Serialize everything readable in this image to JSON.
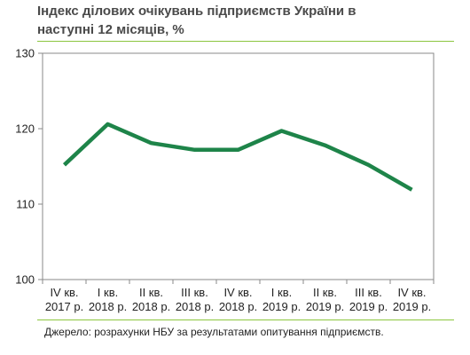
{
  "colors": {
    "line": "#1e8449",
    "axis": "#888888",
    "accent_rule": "#8cc63f",
    "text": "#222222",
    "title": "#4a4a4a"
  },
  "chart_data": {
    "type": "line",
    "title": "Індекс ділових очікувань підприємств України в\nнаступні 12 місяців, %",
    "xlabel": "",
    "ylabel": "",
    "ylim": [
      100,
      130
    ],
    "yticks": [
      "100",
      "110",
      "120",
      "130"
    ],
    "categories": [
      [
        "IV кв.",
        "2017 р."
      ],
      [
        "I кв.",
        "2018 р."
      ],
      [
        "II кв.",
        "2018 р."
      ],
      [
        "III кв.",
        "2018 р."
      ],
      [
        "IV кв.",
        "2018 р."
      ],
      [
        "I кв.",
        "2019 р."
      ],
      [
        "II кв.",
        "2019 р."
      ],
      [
        "III кв.",
        "2019 р."
      ],
      [
        "IV кв.",
        "2019 р."
      ]
    ],
    "series": [
      {
        "values": [
          115.2,
          120.6,
          118.1,
          117.2,
          117.2,
          119.7,
          117.8,
          115.2,
          111.9
        ]
      }
    ],
    "grid": false,
    "legend": "none"
  },
  "source": "Джерело:   розрахунки   НБУ за результатами   опитування підприємств."
}
